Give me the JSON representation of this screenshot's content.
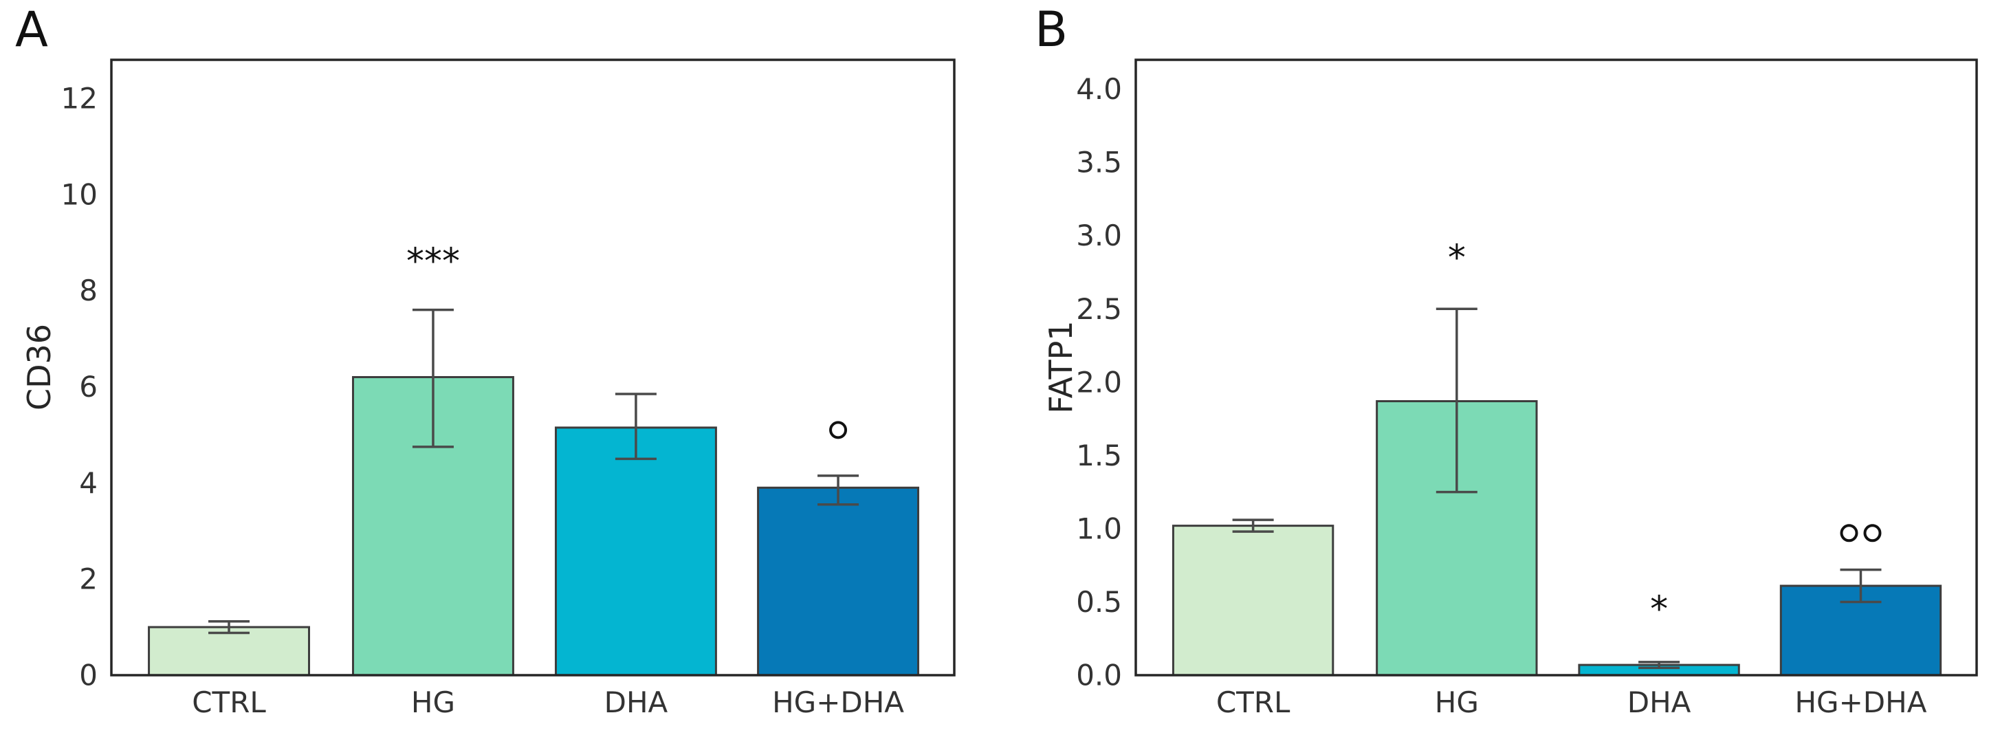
{
  "figure": {
    "description": "Two-panel bar chart of gene expression (CD36 and FATP1) under CTRL, HG, DHA and HG+DHA conditions, with error bars and significance markers",
    "background_color": "#ffffff"
  },
  "colors": {
    "frame": "#262626",
    "bar_edge": "#3d3d3d",
    "error_bar": "#4a4a4a",
    "tick_text": "#333333",
    "marker_text": "#111111"
  },
  "chart_data": [
    {
      "type": "bar",
      "panel_label": "A",
      "title": "",
      "xlabel": "",
      "ylabel": "CD36",
      "categories": [
        "CTRL",
        "HG",
        "DHA",
        "HG+DHA"
      ],
      "values": [
        1.0,
        6.2,
        5.15,
        3.9
      ],
      "error_low": [
        0.88,
        4.75,
        4.5,
        3.55
      ],
      "error_high": [
        1.12,
        7.6,
        5.85,
        4.15
      ],
      "bar_colors": [
        "#d2ecce",
        "#7cdab5",
        "#04b5d1",
        "#0679b7"
      ],
      "significance": [
        {
          "category": "HG",
          "symbol": "***",
          "y": 8.7
        },
        {
          "category": "HG+DHA",
          "symbol": "°",
          "y": 5.1
        }
      ],
      "ylim": [
        0,
        12.8
      ],
      "yticks": [
        0,
        2,
        4,
        6,
        8,
        10,
        12
      ],
      "ytick_labels": [
        "0",
        "2",
        "4",
        "6",
        "8",
        "10",
        "12"
      ],
      "grid": false,
      "legend": null
    },
    {
      "type": "bar",
      "panel_label": "B",
      "title": "",
      "xlabel": "",
      "ylabel": "FATP1",
      "categories": [
        "CTRL",
        "HG",
        "DHA",
        "HG+DHA"
      ],
      "values": [
        1.02,
        1.87,
        0.07,
        0.61
      ],
      "error_low": [
        0.98,
        1.25,
        0.05,
        0.5
      ],
      "error_high": [
        1.06,
        2.5,
        0.09,
        0.72
      ],
      "bar_colors": [
        "#d2ecce",
        "#7cdab5",
        "#04b5d1",
        "#0679b7"
      ],
      "significance": [
        {
          "category": "HG",
          "symbol": "*",
          "y": 2.88
        },
        {
          "category": "DHA",
          "symbol": "*",
          "y": 0.48
        },
        {
          "category": "HG+DHA",
          "symbol": "°°",
          "y": 0.97
        }
      ],
      "ylim": [
        0,
        4.2
      ],
      "yticks": [
        0.0,
        0.5,
        1.0,
        1.5,
        2.0,
        2.5,
        3.0,
        3.5,
        4.0
      ],
      "ytick_labels": [
        "0.0",
        "0.5",
        "1.0",
        "1.5",
        "2.0",
        "2.5",
        "3.0",
        "3.5",
        "4.0"
      ],
      "grid": false,
      "legend": null
    }
  ]
}
